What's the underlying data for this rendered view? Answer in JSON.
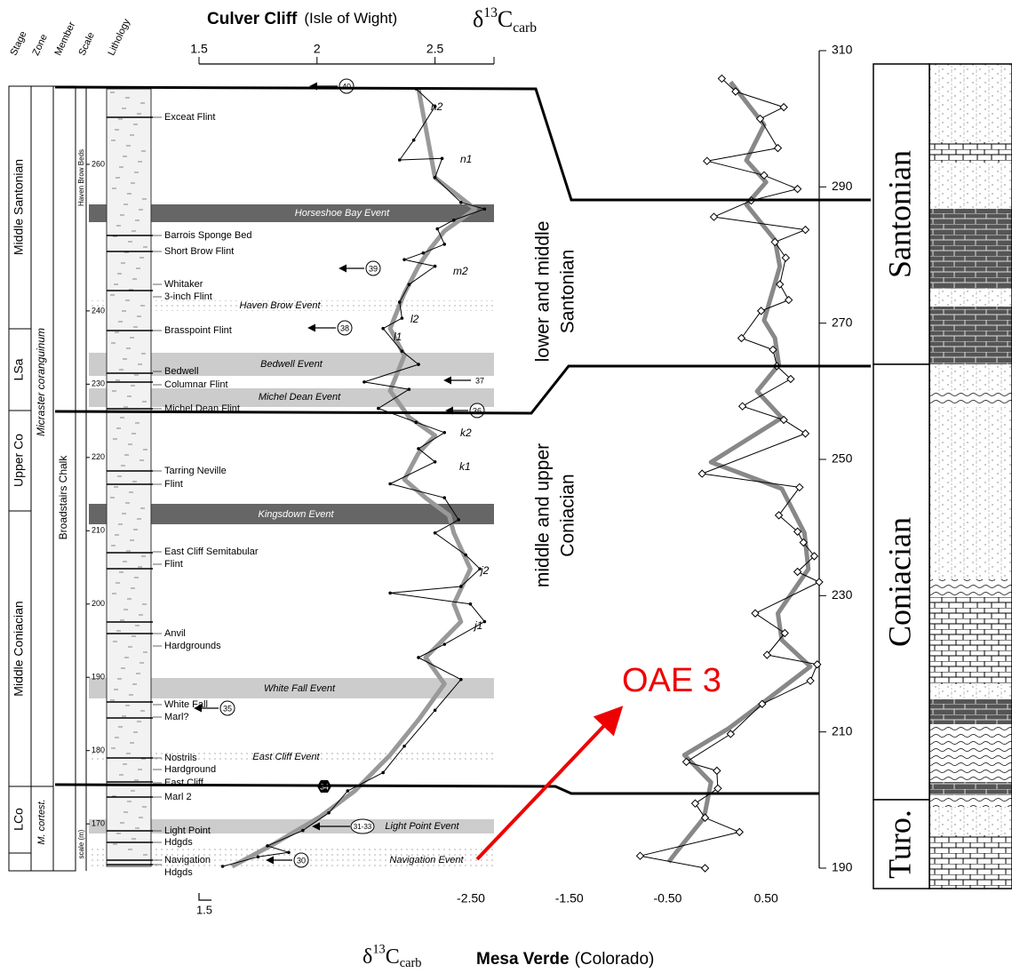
{
  "title": {
    "site": "Culver Cliff",
    "place": "(Isle of Wight)"
  },
  "isotope": {
    "delta": "δ",
    "mass": "13",
    "element": "C",
    "phase": "carb"
  },
  "bottom_title": {
    "site": "Mesa Verde",
    "place": "(Colorado)"
  },
  "columns": [
    "Stage",
    "Zone",
    "Member",
    "Scale",
    "Lithology"
  ],
  "stages": [
    "Middle Santonian",
    "LSa",
    "Upper Co",
    "Middle Coniacian",
    "LCo"
  ],
  "zones": [
    "Micraster coranguinum",
    "M. cortest."
  ],
  "members": [
    "Broadstairs Chalk",
    "Haven Brow Beds"
  ],
  "scale_label": "scale (m)",
  "beds": [
    "Exceat Flint",
    "Barrois Sponge Bed",
    "Short Brow Flint",
    "Whitaker",
    "3-inch Flint",
    "Brasspoint Flint",
    "Bedwell",
    "Columnar Flint",
    "Michel Dean Flint",
    "Tarring Neville",
    "Flint",
    "East Cliff Semitabular",
    "Flint",
    "Anvil",
    "Hardgrounds",
    "White Fall",
    "Marl?",
    "Nostrils",
    "Hardground",
    "East Cliff",
    "Marl 2",
    "Light Point",
    "Hdgds",
    "Navigation",
    "Hdgds"
  ],
  "events": [
    "Horseshoe Bay Event",
    "Haven  Brow Event",
    "Bedwell Event",
    "Michel Dean Event",
    "Kingsdown Event",
    "White Fall Event",
    "East Cliff Event",
    "Light Point Event",
    "Navigation Event"
  ],
  "samples": [
    "40",
    "39",
    "38",
    "37",
    "36",
    "35",
    "34",
    "31-33",
    "30"
  ],
  "curve_labels": [
    "n2",
    "n1",
    "m2",
    "l2",
    "l1",
    "k2",
    "k1",
    "j2",
    "j1"
  ],
  "correlations": [
    "lower and middle",
    "Santonian",
    "middle and upper",
    "Coniacian"
  ],
  "oae": "OAE 3",
  "scale_bar": "1.5",
  "mesa_stages": [
    "Santonian",
    "Coniacian",
    "Turo."
  ],
  "chart_data": [
    {
      "type": "line",
      "xlim": [
        1.5,
        2.75
      ],
      "xticks": [
        1.5,
        2,
        2.5
      ],
      "ylim": [
        164.2,
        270.3
      ],
      "yticks": [
        170,
        180,
        190,
        200,
        210,
        220,
        230,
        240,
        260
      ],
      "series": [
        {
          "color": "#000000",
          "marker": "dot",
          "heights": [
            270.3,
            267.9,
            263.3,
            260.6,
            260.8,
            258.2,
            254.8,
            253.9,
            252.4,
            251.2,
            249.1,
            247.9,
            247.0,
            246.1,
            243.6,
            241.2,
            239.0,
            237.6,
            234.5,
            232.7,
            230.3,
            229.3,
            226.7,
            224.8,
            223.4,
            221.2,
            219.4,
            216.4,
            214.5,
            211.5,
            209.7,
            206.7,
            204.8,
            202.4,
            201.5,
            200.0,
            197.6,
            194.5,
            192.7,
            189.7,
            185.5,
            180.6,
            177.0,
            174.5,
            171.5,
            169.1,
            167.0,
            166.1,
            165.5,
            164.2
          ],
          "values": [
            2.42,
            2.5,
            2.41,
            2.35,
            2.53,
            2.5,
            2.61,
            2.71,
            2.58,
            2.51,
            2.54,
            2.45,
            2.37,
            2.5,
            2.39,
            2.35,
            2.36,
            2.28,
            2.36,
            2.43,
            2.2,
            2.39,
            2.26,
            2.42,
            2.54,
            2.43,
            2.5,
            2.31,
            2.54,
            2.6,
            2.5,
            2.63,
            2.69,
            2.61,
            2.31,
            2.65,
            2.71,
            2.54,
            2.43,
            2.61,
            2.5,
            2.37,
            2.28,
            2.13,
            2.05,
            1.94,
            1.79,
            1.88,
            1.75,
            1.6
          ]
        },
        {
          "color": "#999999",
          "heights": [
            270.3,
            258.2,
            253.9,
            250.9,
            248.5,
            246.1,
            242.4,
            237.6,
            233.9,
            229.1,
            225.5,
            223.0,
            220.6,
            217.0,
            214.5,
            212.1,
            209.7,
            204.8,
            200.0,
            197.6,
            192.7,
            189.1,
            184.2,
            179.4,
            174.5,
            170.9,
            167.3,
            164.2
          ],
          "values": [
            2.43,
            2.5,
            2.67,
            2.54,
            2.48,
            2.43,
            2.37,
            2.31,
            2.37,
            2.31,
            2.39,
            2.5,
            2.43,
            2.37,
            2.46,
            2.56,
            2.58,
            2.65,
            2.58,
            2.61,
            2.46,
            2.54,
            2.43,
            2.31,
            2.16,
            2.01,
            1.82,
            1.64
          ]
        }
      ]
    },
    {
      "type": "line",
      "xlim": [
        -2.5,
        1.04
      ],
      "xticks": [
        {
          "value": -2.5,
          "label": "-2.50"
        },
        {
          "value": -1.5,
          "label": "-1.50"
        },
        {
          "value": -0.5,
          "label": "-0.50"
        },
        {
          "value": 0.5,
          "label": "0.50"
        }
      ],
      "ylim": [
        190,
        310
      ],
      "yticks": [
        190,
        210,
        230,
        250,
        270,
        290,
        310
      ],
      "series": [
        {
          "color": "#000000",
          "marker": "diamond",
          "heights": [
            305.9,
            304.0,
            301.7,
            300.0,
            295.7,
            293.8,
            291.7,
            289.7,
            288.0,
            285.6,
            283.7,
            281.9,
            279.6,
            275.7,
            273.4,
            271.8,
            267.8,
            266.1,
            263.7,
            261.8,
            257.8,
            255.8,
            253.8,
            247.9,
            245.9,
            241.8,
            239.4,
            237.8,
            235.8,
            233.5,
            232.0,
            227.4,
            224.5,
            221.3,
            219.9,
            217.5,
            214.1,
            209.7,
            205.6,
            204.3,
            201.7,
            199.5,
            197.4,
            195.3,
            191.8,
            190.0
          ],
          "values": [
            0.05,
            0.19,
            0.68,
            0.44,
            0.62,
            -0.1,
            0.48,
            0.82,
            0.35,
            -0.03,
            0.9,
            0.59,
            0.7,
            0.64,
            0.73,
            0.45,
            0.25,
            0.57,
            0.61,
            0.75,
            0.26,
            0.68,
            0.9,
            -0.15,
            0.84,
            0.63,
            0.82,
            0.88,
            0.99,
            0.82,
            1.04,
            0.39,
            0.69,
            0.51,
            1.02,
            0.95,
            0.46,
            0.14,
            -0.31,
            0.0,
            0.01,
            -0.22,
            -0.12,
            0.23,
            -0.78,
            -0.12
          ]
        },
        {
          "color": "#888888",
          "heights": [
            305.4,
            299.1,
            293.9,
            290.7,
            287.4,
            282.2,
            278.3,
            270.4,
            267.8,
            263.9,
            260.0,
            256.1,
            249.6,
            245.7,
            239.2,
            233.9,
            227.4,
            223.5,
            219.6,
            214.4,
            210.5,
            206.6,
            202.6,
            197.4,
            192.2,
            190.9
          ],
          "values": [
            0.14,
            0.48,
            0.3,
            0.5,
            0.3,
            0.59,
            0.64,
            0.48,
            0.59,
            0.63,
            0.41,
            0.66,
            -0.06,
            0.66,
            0.89,
            0.93,
            0.62,
            0.66,
            0.95,
            0.48,
            0.12,
            -0.33,
            -0.06,
            -0.13,
            -0.42,
            -0.49
          ]
        }
      ]
    }
  ]
}
